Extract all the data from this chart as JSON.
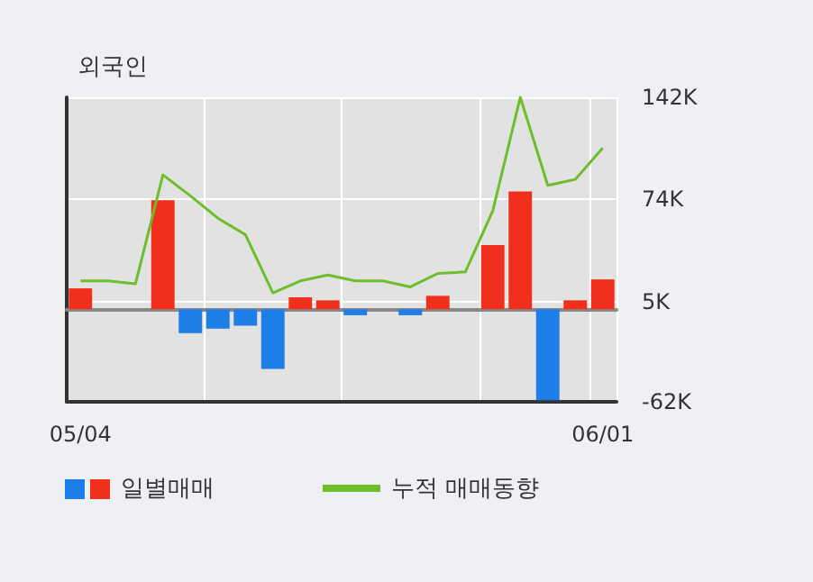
{
  "chart_data": {
    "type": "bar",
    "title": "외국인",
    "categories": [
      "05/04",
      null,
      null,
      null,
      null,
      null,
      null,
      null,
      null,
      null,
      null,
      null,
      null,
      null,
      null,
      null,
      null,
      null,
      null,
      "06/01"
    ],
    "series": [
      {
        "name": "일별매매",
        "values": [
          14,
          null,
          null,
          73,
          -16,
          -13,
          -11,
          -40,
          8,
          6,
          -4,
          null,
          -4,
          9,
          null,
          43,
          79,
          -61,
          6,
          20
        ],
        "colors": [
          "#f0301c",
          null,
          null,
          "#f0301c",
          "#1e7ee8",
          "#1e7ee8",
          "#1e7ee8",
          "#1e7ee8",
          "#f0301c",
          "#f0301c",
          "#1e7ee8",
          null,
          "#1e7ee8",
          "#f0301c",
          null,
          "#f0301c",
          "#f0301c",
          "#1e7ee8",
          "#f0301c",
          "#f0301c"
        ]
      },
      {
        "name": "누적 매매동향",
        "type": "line",
        "color": "#6cbf2a",
        "values": [
          19,
          19,
          17,
          90,
          76,
          61,
          50,
          11,
          19,
          23,
          19,
          19,
          15,
          24,
          25,
          66,
          142,
          83,
          87,
          108
        ]
      }
    ],
    "ylim": [
      -62,
      142
    ],
    "yticks": [
      {
        "value": -62,
        "label": "-62K"
      },
      {
        "value": 5,
        "label": "5K"
      },
      {
        "value": 74,
        "label": "74K"
      },
      {
        "value": 142,
        "label": "142K"
      }
    ],
    "grid": true,
    "legend": "bottom left",
    "marker": "none"
  }
}
